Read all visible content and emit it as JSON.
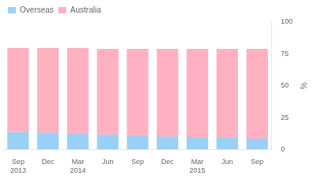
{
  "chart_data": {
    "type": "bar",
    "stacked": true,
    "categories": [
      "Sep\n2013",
      "Dec",
      "Mar\n2014",
      "Jun",
      "Sep",
      "Dec",
      "Mar\n2015",
      "Jun",
      "Sep"
    ],
    "series": [
      {
        "name": "Overseas",
        "values": [
          13.5,
          13.0,
          12.0,
          11.5,
          10.5,
          10.0,
          9.5,
          9.0,
          8.5
        ]
      },
      {
        "name": "Australia",
        "values": [
          66.0,
          66.5,
          67.5,
          67.5,
          68.5,
          69.0,
          69.5,
          70.0,
          70.5
        ]
      }
    ],
    "ylabel": "%",
    "ylim": [
      0,
      100
    ],
    "yticks": [
      0,
      25,
      50,
      75,
      100
    ],
    "grid": false,
    "legend": "upper left"
  }
}
